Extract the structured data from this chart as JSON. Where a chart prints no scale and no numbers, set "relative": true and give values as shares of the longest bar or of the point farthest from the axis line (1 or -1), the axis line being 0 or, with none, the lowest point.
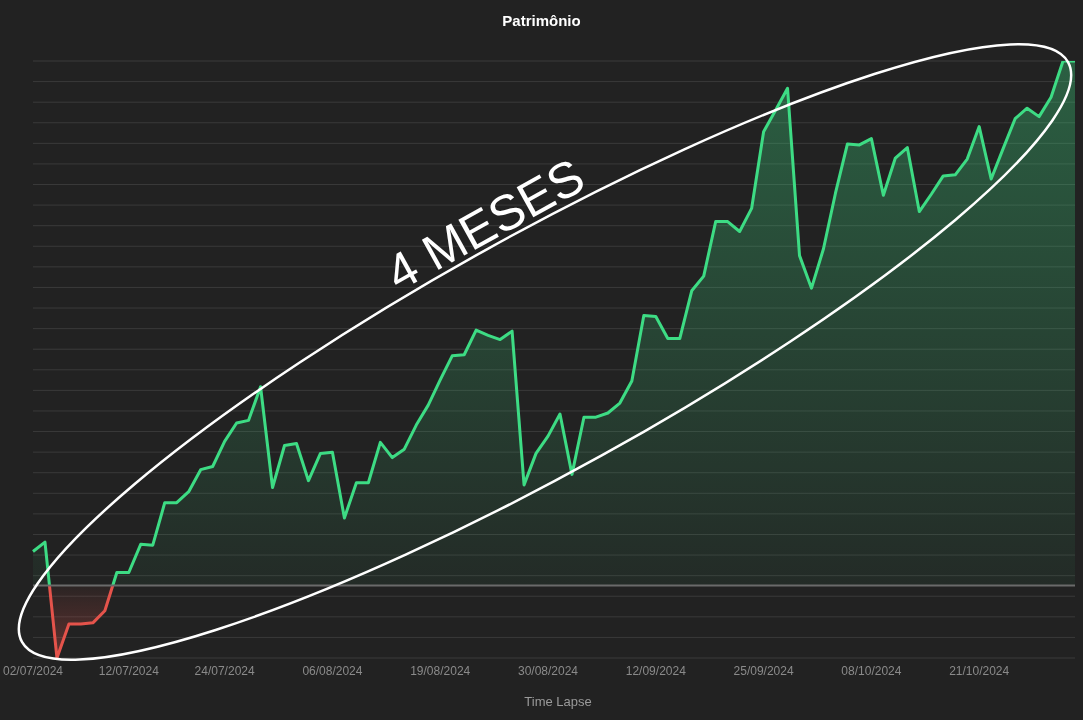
{
  "chart_data": {
    "type": "area",
    "title": "Patrimônio",
    "relative": true,
    "grid": "y",
    "legend": "bottom",
    "annotations": [
      "4 MESES"
    ],
    "categories": [
      "02/07/2024",
      null,
      null,
      null,
      null,
      null,
      null,
      null,
      "12/07/2024",
      null,
      null,
      null,
      null,
      null,
      null,
      null,
      "24/07/2024",
      null,
      null,
      null,
      null,
      null,
      null,
      null,
      null,
      "06/08/2024",
      null,
      null,
      null,
      null,
      null,
      null,
      null,
      null,
      "19/08/2024",
      null,
      null,
      null,
      null,
      null,
      null,
      null,
      null,
      "30/08/2024",
      null,
      null,
      null,
      null,
      null,
      null,
      null,
      null,
      "12/09/2024",
      null,
      null,
      null,
      null,
      null,
      null,
      null,
      null,
      "25/09/2024",
      null,
      null,
      null,
      null,
      null,
      null,
      null,
      null,
      "08/10/2024",
      null,
      null,
      null,
      null,
      null,
      null,
      null,
      null,
      "21/10/2024",
      null,
      null,
      null,
      null,
      null,
      null,
      null,
      null
    ],
    "series": [
      {
        "name": "Time Lapse",
        "color": "#3ddc84",
        "values": [
          0.065,
          0.083,
          -0.138,
          -0.073,
          -0.073,
          -0.071,
          -0.048,
          0.025,
          0.025,
          0.079,
          0.077,
          0.158,
          0.158,
          0.179,
          0.221,
          0.227,
          0.275,
          0.31,
          0.315,
          0.379,
          0.187,
          0.267,
          0.271,
          0.2,
          0.252,
          0.254,
          0.129,
          0.196,
          0.196,
          0.273,
          0.244,
          0.26,
          0.306,
          0.344,
          0.392,
          0.438,
          0.44,
          0.487,
          0.477,
          0.469,
          0.485,
          0.192,
          0.252,
          0.285,
          0.327,
          0.212,
          0.321,
          0.321,
          0.329,
          0.348,
          0.39,
          0.515,
          0.513,
          0.471,
          0.471,
          0.562,
          0.59,
          0.694,
          0.694,
          0.675,
          0.719,
          0.865,
          0.906,
          0.948,
          0.629,
          0.567,
          0.642,
          0.748,
          0.842,
          0.84,
          0.852,
          0.744,
          0.815,
          0.835,
          0.713,
          0.746,
          0.781,
          0.783,
          0.813,
          0.875,
          0.775,
          0.833,
          0.89,
          0.91,
          0.894,
          0.931,
          1,
          1
        ]
      }
    ]
  }
}
